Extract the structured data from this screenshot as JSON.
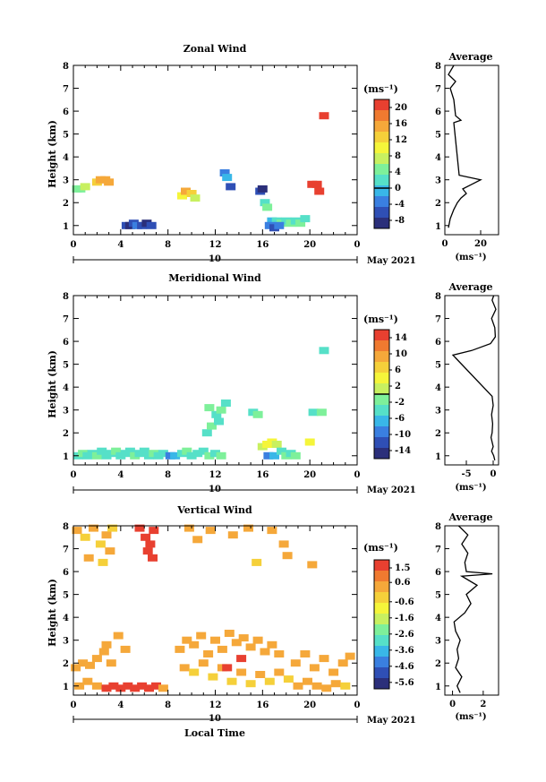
{
  "panels": [
    {
      "title": "Zonal Wind",
      "ylabel": "Height (km)",
      "unit": "(ms⁻¹)",
      "colorbar_ticks": [
        "20",
        "16",
        "12",
        "8",
        "4",
        "0",
        "-4",
        "-8"
      ],
      "colorbar_range": [
        -10,
        22
      ],
      "zero_line": 0,
      "avg_title": "Average",
      "avg_ticks": [
        "0",
        "20"
      ],
      "avg_range": [
        0,
        30
      ],
      "avg_unit": "(ms⁻¹)"
    },
    {
      "title": "Meridional Wind",
      "ylabel": "Height (km)",
      "unit": "(ms⁻¹)",
      "colorbar_ticks": [
        "14",
        "10",
        "6",
        "2",
        "-2",
        "-6",
        "-10",
        "-14"
      ],
      "colorbar_range": [
        -16,
        16
      ],
      "zero_line": 0,
      "avg_title": "Average",
      "avg_ticks": [
        "-5",
        "0"
      ],
      "avg_range": [
        -9,
        1
      ],
      "avg_unit": "(ms⁻¹)"
    },
    {
      "title": "Vertical Wind",
      "ylabel": "Height (km)",
      "unit": "(ms⁻¹)",
      "colorbar_ticks": [
        "1.5",
        "0.6",
        "-0.6",
        "-1.6",
        "-2.6",
        "-3.6",
        "-4.6",
        "-5.6"
      ],
      "colorbar_range": [
        -6.0,
        2.0
      ],
      "zero_line": null,
      "avg_title": "Average",
      "avg_ticks": [
        "0",
        "2"
      ],
      "avg_range": [
        -0.5,
        3
      ],
      "avg_unit": "(ms⁻¹)",
      "xlabel": "Local Time"
    }
  ],
  "x_ticks": [
    "0",
    "4",
    "8",
    "12",
    "16",
    "20",
    "0"
  ],
  "y_ticks": [
    "1",
    "2",
    "3",
    "4",
    "5",
    "6",
    "7",
    "8"
  ],
  "date_label": "10",
  "month_label": "May 2021",
  "colors": [
    "#2b2f7a",
    "#2f4fb5",
    "#3a7fe0",
    "#39b7e8",
    "#56e0c8",
    "#7ef09a",
    "#c8f060",
    "#f5f53a",
    "#f5d03a",
    "#f5a83a",
    "#f07a30",
    "#e84030"
  ],
  "chart_data": [
    {
      "type": "heatmap",
      "title": "Zonal Wind",
      "xlabel": "",
      "ylabel": "Height (km)",
      "xlim": [
        0,
        24
      ],
      "ylim": [
        0.6,
        8
      ],
      "zlim": [
        -10,
        22
      ],
      "cells": [
        [
          0.3,
          2.6,
          4
        ],
        [
          0.6,
          2.6,
          5
        ],
        [
          1.0,
          2.7,
          8
        ],
        [
          2.0,
          2.9,
          12
        ],
        [
          2.3,
          3.0,
          14
        ],
        [
          2.7,
          3.0,
          16
        ],
        [
          3.0,
          2.9,
          14
        ],
        [
          4.5,
          1.0,
          -6
        ],
        [
          4.8,
          1.0,
          -8
        ],
        [
          5.1,
          1.1,
          -6
        ],
        [
          5.4,
          1.0,
          -4
        ],
        [
          5.8,
          1.0,
          -6
        ],
        [
          6.2,
          1.1,
          -8
        ],
        [
          6.6,
          1.0,
          -5
        ],
        [
          9.2,
          2.3,
          10
        ],
        [
          9.5,
          2.5,
          14
        ],
        [
          10.0,
          2.4,
          12
        ],
        [
          10.3,
          2.2,
          8
        ],
        [
          12.8,
          3.3,
          -4
        ],
        [
          13.0,
          3.1,
          -2
        ],
        [
          13.3,
          2.7,
          -6
        ],
        [
          15.8,
          2.5,
          -6
        ],
        [
          16.0,
          2.6,
          -8
        ],
        [
          16.2,
          2.0,
          2
        ],
        [
          16.4,
          1.8,
          4
        ],
        [
          16.8,
          1.2,
          -2
        ],
        [
          17.2,
          1.2,
          2
        ],
        [
          17.6,
          1.1,
          4
        ],
        [
          18.0,
          1.2,
          2
        ],
        [
          18.4,
          1.1,
          4
        ],
        [
          18.8,
          1.2,
          2
        ],
        [
          19.2,
          1.1,
          4
        ],
        [
          19.6,
          1.3,
          2
        ],
        [
          16.6,
          1.0,
          -4
        ],
        [
          17.0,
          0.9,
          -6
        ],
        [
          17.4,
          1.0,
          -4
        ],
        [
          20.2,
          2.8,
          22
        ],
        [
          20.6,
          2.8,
          20
        ],
        [
          20.8,
          2.5,
          20
        ],
        [
          21.2,
          5.8,
          22
        ]
      ],
      "average": [
        [
          2,
          0.9
        ],
        [
          3,
          1.3
        ],
        [
          5,
          1.7
        ],
        [
          7,
          2.0
        ],
        [
          9,
          2.2
        ],
        [
          12,
          2.4
        ],
        [
          10,
          2.6
        ],
        [
          15,
          2.8
        ],
        [
          20,
          3.0
        ],
        [
          8,
          3.2
        ],
        [
          5,
          5.5
        ],
        [
          9,
          5.6
        ],
        [
          6,
          5.8
        ],
        [
          5,
          6.5
        ],
        [
          3,
          7.0
        ],
        [
          6,
          7.3
        ],
        [
          2,
          7.6
        ],
        [
          5,
          8.0
        ]
      ]
    },
    {
      "type": "heatmap",
      "title": "Meridional Wind",
      "xlabel": "",
      "ylabel": "Height (km)",
      "xlim": [
        0,
        24
      ],
      "ylim": [
        0.6,
        8
      ],
      "zlim": [
        -16,
        16
      ],
      "cells": [
        [
          0.4,
          1.0,
          -3
        ],
        [
          0.8,
          1.1,
          -2
        ],
        [
          1.2,
          1.0,
          -4
        ],
        [
          1.6,
          1.1,
          -3
        ],
        [
          2.0,
          1.0,
          -2
        ],
        [
          2.4,
          1.2,
          -3
        ],
        [
          2.8,
          1.0,
          -4
        ],
        [
          3.2,
          1.1,
          -3
        ],
        [
          3.6,
          1.2,
          -2
        ],
        [
          4.0,
          1.0,
          -3
        ],
        [
          4.4,
          1.1,
          -4
        ],
        [
          4.8,
          1.2,
          -3
        ],
        [
          5.2,
          1.0,
          -2
        ],
        [
          5.6,
          1.1,
          -3
        ],
        [
          6.0,
          1.2,
          -4
        ],
        [
          6.4,
          1.0,
          -3
        ],
        [
          6.8,
          1.1,
          -2
        ],
        [
          7.2,
          1.0,
          -3
        ],
        [
          7.6,
          1.1,
          -4
        ],
        [
          8.2,
          1.0,
          -10
        ],
        [
          8.6,
          1.0,
          -8
        ],
        [
          9.2,
          1.1,
          -3
        ],
        [
          9.6,
          1.2,
          -2
        ],
        [
          10.0,
          1.0,
          -3
        ],
        [
          10.5,
          1.1,
          -4
        ],
        [
          11.0,
          1.2,
          -3
        ],
        [
          11.5,
          1.0,
          -2
        ],
        [
          12.0,
          1.1,
          -3
        ],
        [
          12.5,
          1.0,
          -2
        ],
        [
          11.3,
          2.0,
          -3
        ],
        [
          11.7,
          2.3,
          -2
        ],
        [
          12.1,
          2.8,
          -3
        ],
        [
          12.5,
          3.0,
          -2
        ],
        [
          12.9,
          3.3,
          -3
        ],
        [
          11.5,
          3.1,
          -2
        ],
        [
          12.3,
          2.5,
          -3
        ],
        [
          15.2,
          2.9,
          -3
        ],
        [
          15.6,
          2.8,
          -2
        ],
        [
          16.0,
          1.4,
          2
        ],
        [
          16.4,
          1.5,
          4
        ],
        [
          16.8,
          1.6,
          4
        ],
        [
          17.2,
          1.5,
          2
        ],
        [
          16.5,
          1.0,
          -10
        ],
        [
          17.0,
          1.0,
          -8
        ],
        [
          17.6,
          1.2,
          -3
        ],
        [
          18.0,
          1.0,
          -2
        ],
        [
          18.4,
          1.1,
          -3
        ],
        [
          18.8,
          1.0,
          -2
        ],
        [
          20.0,
          1.6,
          4
        ],
        [
          20.3,
          2.9,
          -3
        ],
        [
          21.0,
          2.9,
          -2
        ],
        [
          21.2,
          5.6,
          -3
        ]
      ],
      "average": [
        [
          0.3,
          0.8
        ],
        [
          0.1,
          1.0
        ],
        [
          -0.3,
          1.2
        ],
        [
          0.0,
          1.4
        ],
        [
          -0.2,
          1.6
        ],
        [
          -0.4,
          1.8
        ],
        [
          -0.2,
          2.0
        ],
        [
          -0.1,
          2.4
        ],
        [
          -0.3,
          2.8
        ],
        [
          0.0,
          3.2
        ],
        [
          -0.2,
          3.6
        ],
        [
          -7.5,
          5.4
        ],
        [
          -4.0,
          5.6
        ],
        [
          -0.5,
          5.9
        ],
        [
          0.4,
          6.2
        ],
        [
          0.3,
          6.6
        ],
        [
          -0.3,
          7.0
        ],
        [
          0.5,
          7.4
        ],
        [
          -0.2,
          7.8
        ],
        [
          0.1,
          8.0
        ]
      ]
    },
    {
      "type": "heatmap",
      "title": "Vertical Wind",
      "xlabel": "Local Time",
      "ylabel": "Height (km)",
      "xlim": [
        0,
        24
      ],
      "ylim": [
        0.6,
        8
      ],
      "zlim": [
        -6.0,
        2.0
      ],
      "cells": [
        [
          0.3,
          7.8,
          0.0
        ],
        [
          1.0,
          7.5,
          -0.2
        ],
        [
          1.7,
          7.9,
          0.0
        ],
        [
          2.3,
          7.2,
          -0.2
        ],
        [
          2.8,
          7.6,
          0.0
        ],
        [
          3.3,
          7.9,
          -0.3
        ],
        [
          1.3,
          6.6,
          0.0
        ],
        [
          2.5,
          6.4,
          -0.2
        ],
        [
          3.1,
          6.9,
          0.0
        ],
        [
          5.6,
          7.9,
          1.8
        ],
        [
          6.1,
          7.5,
          1.8
        ],
        [
          6.5,
          7.2,
          1.8
        ],
        [
          6.7,
          6.6,
          1.8
        ],
        [
          6.3,
          6.9,
          1.8
        ],
        [
          6.8,
          7.8,
          1.8
        ],
        [
          9.8,
          7.9,
          0.6
        ],
        [
          10.5,
          7.4,
          0.3
        ],
        [
          11.6,
          7.8,
          0.6
        ],
        [
          13.5,
          7.6,
          0.6
        ],
        [
          14.8,
          7.9,
          0.0
        ],
        [
          16.8,
          7.8,
          0.3
        ],
        [
          17.8,
          7.2,
          0.0
        ],
        [
          18.1,
          6.7,
          0.0
        ],
        [
          15.5,
          6.4,
          -0.2
        ],
        [
          20.2,
          6.3,
          0.0
        ],
        [
          0.2,
          1.8,
          0.6
        ],
        [
          0.8,
          2.0,
          0.3
        ],
        [
          1.4,
          1.9,
          0.6
        ],
        [
          2.0,
          2.2,
          0.3
        ],
        [
          2.6,
          2.5,
          0.6
        ],
        [
          3.2,
          2.0,
          0.3
        ],
        [
          3.8,
          3.2,
          0.6
        ],
        [
          4.4,
          2.6,
          0.3
        ],
        [
          2.8,
          2.8,
          0.0
        ],
        [
          0.5,
          1.0,
          0.3
        ],
        [
          1.2,
          1.2,
          0.6
        ],
        [
          2.0,
          1.0,
          0.3
        ],
        [
          2.8,
          0.9,
          1.5
        ],
        [
          3.4,
          1.0,
          1.8
        ],
        [
          4.0,
          0.9,
          1.5
        ],
        [
          4.6,
          1.0,
          1.8
        ],
        [
          5.2,
          0.9,
          1.5
        ],
        [
          5.8,
          1.0,
          1.8
        ],
        [
          6.4,
          0.9,
          1.5
        ],
        [
          7.0,
          1.0,
          1.8
        ],
        [
          7.6,
          0.9,
          0.6
        ],
        [
          9.0,
          2.6,
          0.3
        ],
        [
          9.6,
          3.0,
          0.6
        ],
        [
          10.2,
          2.8,
          0.3
        ],
        [
          10.8,
          3.2,
          0.6
        ],
        [
          11.4,
          2.4,
          0.3
        ],
        [
          12.0,
          3.0,
          0.6
        ],
        [
          12.6,
          2.6,
          0.3
        ],
        [
          13.2,
          3.3,
          0.6
        ],
        [
          13.8,
          2.9,
          0.3
        ],
        [
          14.4,
          3.1,
          0.6
        ],
        [
          15.0,
          2.7,
          0.3
        ],
        [
          15.6,
          3.0,
          0.6
        ],
        [
          16.2,
          2.5,
          0.3
        ],
        [
          16.8,
          2.8,
          0.6
        ],
        [
          17.4,
          2.4,
          0.3
        ],
        [
          9.4,
          1.8,
          0.0
        ],
        [
          10.2,
          1.6,
          -0.2
        ],
        [
          11.0,
          2.0,
          0.0
        ],
        [
          11.8,
          1.4,
          -0.3
        ],
        [
          12.6,
          1.8,
          0.0
        ],
        [
          13.4,
          1.2,
          -0.2
        ],
        [
          14.2,
          1.6,
          0.0
        ],
        [
          15.0,
          1.1,
          -0.3
        ],
        [
          15.8,
          1.5,
          0.0
        ],
        [
          16.6,
          1.2,
          -0.2
        ],
        [
          17.4,
          1.6,
          0.0
        ],
        [
          18.2,
          1.3,
          -0.3
        ],
        [
          18.8,
          2.0,
          0.3
        ],
        [
          19.6,
          2.4,
          0.6
        ],
        [
          20.4,
          1.8,
          0.3
        ],
        [
          21.2,
          2.2,
          0.6
        ],
        [
          22.0,
          1.6,
          0.3
        ],
        [
          22.8,
          2.0,
          0.6
        ],
        [
          23.4,
          2.3,
          0.3
        ],
        [
          19.0,
          1.0,
          0.6
        ],
        [
          19.8,
          1.2,
          0.3
        ],
        [
          20.6,
          1.0,
          0.6
        ],
        [
          21.4,
          0.9,
          0.3
        ],
        [
          22.2,
          1.1,
          0.0
        ],
        [
          23.0,
          1.0,
          -0.2
        ],
        [
          13.0,
          1.8,
          1.5
        ],
        [
          14.2,
          2.2,
          1.5
        ]
      ],
      "average": [
        [
          0.5,
          0.7
        ],
        [
          0.3,
          1.0
        ],
        [
          0.6,
          1.4
        ],
        [
          0.2,
          1.8
        ],
        [
          0.4,
          2.2
        ],
        [
          0.3,
          2.6
        ],
        [
          0.5,
          3.0
        ],
        [
          0.2,
          3.4
        ],
        [
          0.1,
          3.8
        ],
        [
          0.8,
          4.2
        ],
        [
          1.2,
          4.6
        ],
        [
          0.9,
          5.0
        ],
        [
          1.6,
          5.4
        ],
        [
          0.6,
          5.8
        ],
        [
          2.6,
          5.9
        ],
        [
          0.9,
          6.0
        ],
        [
          0.8,
          6.4
        ],
        [
          1.0,
          6.8
        ],
        [
          0.6,
          7.2
        ],
        [
          1.0,
          7.6
        ],
        [
          0.4,
          8.0
        ]
      ]
    }
  ]
}
